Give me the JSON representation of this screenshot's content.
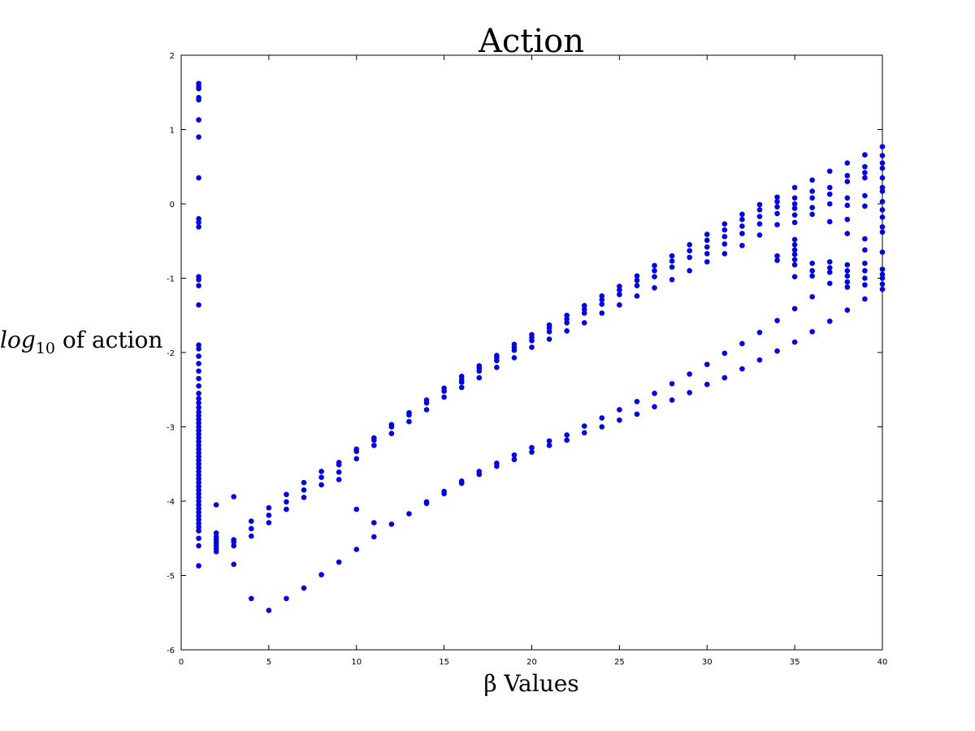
{
  "chart_data": {
    "type": "scatter",
    "title": "Action",
    "xlabel": "β Values",
    "ylabel_parts": {
      "prefix": "log",
      "subscript": "10",
      "suffix": " of action"
    },
    "xlim": [
      0,
      40
    ],
    "ylim": [
      -6,
      2
    ],
    "xticks": [
      0,
      5,
      10,
      15,
      20,
      25,
      30,
      35,
      40
    ],
    "yticks": [
      -6,
      -5,
      -4,
      -3,
      -2,
      -1,
      0,
      1,
      2
    ],
    "grid": false,
    "point_color": "#0000ee",
    "points": [
      [
        1,
        1.62
      ],
      [
        1,
        1.58
      ],
      [
        1,
        1.55
      ],
      [
        1,
        1.43
      ],
      [
        1,
        1.4
      ],
      [
        1,
        1.13
      ],
      [
        1,
        0.9
      ],
      [
        1,
        0.35
      ],
      [
        1,
        -0.2
      ],
      [
        1,
        -0.25
      ],
      [
        1,
        -0.31
      ],
      [
        1,
        -0.98
      ],
      [
        1,
        -1.02
      ],
      [
        1,
        -1.1
      ],
      [
        1,
        -1.36
      ],
      [
        1,
        -1.9
      ],
      [
        1,
        -1.95
      ],
      [
        1,
        -2.05
      ],
      [
        1,
        -2.15
      ],
      [
        1,
        -2.25
      ],
      [
        1,
        -2.35
      ],
      [
        1,
        -2.45
      ],
      [
        1,
        -2.55
      ],
      [
        1,
        -2.62
      ],
      [
        1,
        -2.68
      ],
      [
        1,
        -2.74
      ],
      [
        1,
        -2.8
      ],
      [
        1,
        -2.85
      ],
      [
        1,
        -2.9
      ],
      [
        1,
        -2.95
      ],
      [
        1,
        -3.0
      ],
      [
        1,
        -3.05
      ],
      [
        1,
        -3.1
      ],
      [
        1,
        -3.15
      ],
      [
        1,
        -3.2
      ],
      [
        1,
        -3.25
      ],
      [
        1,
        -3.3
      ],
      [
        1,
        -3.35
      ],
      [
        1,
        -3.4
      ],
      [
        1,
        -3.45
      ],
      [
        1,
        -3.5
      ],
      [
        1,
        -3.55
      ],
      [
        1,
        -3.6
      ],
      [
        1,
        -3.65
      ],
      [
        1,
        -3.7
      ],
      [
        1,
        -3.75
      ],
      [
        1,
        -3.8
      ],
      [
        1,
        -3.85
      ],
      [
        1,
        -3.9
      ],
      [
        1,
        -3.95
      ],
      [
        1,
        -4.0
      ],
      [
        1,
        -4.05
      ],
      [
        1,
        -4.1
      ],
      [
        1,
        -4.15
      ],
      [
        1,
        -4.2
      ],
      [
        1,
        -4.25
      ],
      [
        1,
        -4.3
      ],
      [
        1,
        -4.35
      ],
      [
        1,
        -4.4
      ],
      [
        1,
        -4.5
      ],
      [
        1,
        -4.6
      ],
      [
        1,
        -4.87
      ],
      [
        2,
        -4.05
      ],
      [
        2,
        -4.43
      ],
      [
        2,
        -4.48
      ],
      [
        2,
        -4.52
      ],
      [
        2,
        -4.56
      ],
      [
        2,
        -4.6
      ],
      [
        2,
        -4.64
      ],
      [
        2,
        -4.68
      ],
      [
        3,
        -3.94
      ],
      [
        3,
        -4.52
      ],
      [
        3,
        -4.55
      ],
      [
        3,
        -4.6
      ],
      [
        3,
        -4.85
      ],
      [
        4,
        -4.27
      ],
      [
        4,
        -4.37
      ],
      [
        4,
        -4.47
      ],
      [
        4,
        -5.31
      ],
      [
        5,
        -4.09
      ],
      [
        5,
        -4.19
      ],
      [
        5,
        -4.29
      ],
      [
        5,
        -5.47
      ],
      [
        6,
        -3.91
      ],
      [
        6,
        -4.01
      ],
      [
        6,
        -4.11
      ],
      [
        6,
        -5.31
      ],
      [
        7,
        -3.75
      ],
      [
        7,
        -3.85
      ],
      [
        7,
        -3.95
      ],
      [
        7,
        -5.17
      ],
      [
        8,
        -3.6
      ],
      [
        8,
        -3.68
      ],
      [
        8,
        -3.78
      ],
      [
        8,
        -4.99
      ],
      [
        9,
        -3.48
      ],
      [
        9,
        -3.51
      ],
      [
        9,
        -3.61
      ],
      [
        9,
        -3.71
      ],
      [
        9,
        -4.82
      ],
      [
        10,
        -3.3
      ],
      [
        10,
        -3.33
      ],
      [
        10,
        -3.43
      ],
      [
        10,
        -4.11
      ],
      [
        10,
        -4.65
      ],
      [
        11,
        -3.15
      ],
      [
        11,
        -3.18
      ],
      [
        11,
        -3.25
      ],
      [
        11,
        -4.29
      ],
      [
        11,
        -4.48
      ],
      [
        12,
        -2.97
      ],
      [
        12,
        -3.0
      ],
      [
        12,
        -3.09
      ],
      [
        12,
        -4.31
      ],
      [
        13,
        -2.81
      ],
      [
        13,
        -2.84
      ],
      [
        13,
        -2.93
      ],
      [
        13,
        -4.17
      ],
      [
        14,
        -2.64
      ],
      [
        14,
        -2.68
      ],
      [
        14,
        -2.77
      ],
      [
        14,
        -4.01
      ],
      [
        14,
        -4.03
      ],
      [
        15,
        -2.48
      ],
      [
        15,
        -2.52
      ],
      [
        15,
        -2.6
      ],
      [
        15,
        -3.87
      ],
      [
        15,
        -3.9
      ],
      [
        16,
        -2.32
      ],
      [
        16,
        -2.36
      ],
      [
        16,
        -2.4
      ],
      [
        16,
        -2.47
      ],
      [
        16,
        -3.73
      ],
      [
        16,
        -3.76
      ],
      [
        17,
        -2.18
      ],
      [
        17,
        -2.21
      ],
      [
        17,
        -2.25
      ],
      [
        17,
        -2.34
      ],
      [
        17,
        -3.6
      ],
      [
        17,
        -3.64
      ],
      [
        18,
        -2.04
      ],
      [
        18,
        -2.07
      ],
      [
        18,
        -2.11
      ],
      [
        18,
        -2.2
      ],
      [
        18,
        -3.49
      ],
      [
        18,
        -3.53
      ],
      [
        19,
        -1.89
      ],
      [
        19,
        -1.93
      ],
      [
        19,
        -1.97
      ],
      [
        19,
        -2.07
      ],
      [
        19,
        -3.38
      ],
      [
        19,
        -3.44
      ],
      [
        20,
        -1.76
      ],
      [
        20,
        -1.8
      ],
      [
        20,
        -1.84
      ],
      [
        20,
        -1.93
      ],
      [
        20,
        -3.28
      ],
      [
        20,
        -3.34
      ],
      [
        21,
        -1.63
      ],
      [
        21,
        -1.67
      ],
      [
        21,
        -1.72
      ],
      [
        21,
        -1.82
      ],
      [
        21,
        -3.19
      ],
      [
        21,
        -3.25
      ],
      [
        22,
        -1.5
      ],
      [
        22,
        -1.55
      ],
      [
        22,
        -1.6
      ],
      [
        22,
        -1.71
      ],
      [
        22,
        -3.11
      ],
      [
        22,
        -3.18
      ],
      [
        23,
        -1.37
      ],
      [
        23,
        -1.42
      ],
      [
        23,
        -1.47
      ],
      [
        23,
        -1.6
      ],
      [
        23,
        -2.99
      ],
      [
        23,
        -3.08
      ],
      [
        24,
        -1.24
      ],
      [
        24,
        -1.29
      ],
      [
        24,
        -1.35
      ],
      [
        24,
        -1.47
      ],
      [
        24,
        -2.88
      ],
      [
        24,
        -3.0
      ],
      [
        25,
        -1.11
      ],
      [
        25,
        -1.16
      ],
      [
        25,
        -1.22
      ],
      [
        25,
        -1.36
      ],
      [
        25,
        -2.77
      ],
      [
        25,
        -2.91
      ],
      [
        26,
        -0.97
      ],
      [
        26,
        -1.03
      ],
      [
        26,
        -1.1
      ],
      [
        26,
        -1.24
      ],
      [
        26,
        -2.66
      ],
      [
        26,
        -2.83
      ],
      [
        27,
        -0.83
      ],
      [
        27,
        -0.9
      ],
      [
        27,
        -0.98
      ],
      [
        27,
        -1.13
      ],
      [
        27,
        -2.55
      ],
      [
        27,
        -2.73
      ],
      [
        28,
        -0.7
      ],
      [
        28,
        -0.77
      ],
      [
        28,
        -0.85
      ],
      [
        28,
        -1.02
      ],
      [
        28,
        -2.42
      ],
      [
        28,
        -2.64
      ],
      [
        29,
        -0.55
      ],
      [
        29,
        -0.63
      ],
      [
        29,
        -0.72
      ],
      [
        29,
        -0.9
      ],
      [
        29,
        -2.29
      ],
      [
        29,
        -2.54
      ],
      [
        30,
        -0.41
      ],
      [
        30,
        -0.49
      ],
      [
        30,
        -0.58
      ],
      [
        30,
        -0.67
      ],
      [
        30,
        -0.78
      ],
      [
        30,
        -2.16
      ],
      [
        30,
        -2.43
      ],
      [
        31,
        -0.27
      ],
      [
        31,
        -0.35
      ],
      [
        31,
        -0.44
      ],
      [
        31,
        -0.54
      ],
      [
        31,
        -0.67
      ],
      [
        31,
        -2.01
      ],
      [
        31,
        -2.34
      ],
      [
        32,
        -0.14
      ],
      [
        32,
        -0.21
      ],
      [
        32,
        -0.3
      ],
      [
        32,
        -0.4
      ],
      [
        32,
        -0.56
      ],
      [
        32,
        -1.88
      ],
      [
        32,
        -2.22
      ],
      [
        33,
        -0.01
      ],
      [
        33,
        -0.08
      ],
      [
        33,
        -0.17
      ],
      [
        33,
        -0.27
      ],
      [
        33,
        -0.42
      ],
      [
        33,
        -1.73
      ],
      [
        33,
        -2.1
      ],
      [
        34,
        0.09
      ],
      [
        34,
        0.03
      ],
      [
        34,
        -0.04
      ],
      [
        34,
        -0.13
      ],
      [
        34,
        -0.28
      ],
      [
        34,
        -0.7
      ],
      [
        34,
        -0.76
      ],
      [
        34,
        -1.57
      ],
      [
        34,
        -1.98
      ],
      [
        35,
        0.22
      ],
      [
        35,
        0.08
      ],
      [
        35,
        0.0
      ],
      [
        35,
        -0.06
      ],
      [
        35,
        -0.15
      ],
      [
        35,
        -0.25
      ],
      [
        35,
        -0.48
      ],
      [
        35,
        -0.55
      ],
      [
        35,
        -0.62
      ],
      [
        35,
        -0.68
      ],
      [
        35,
        -0.75
      ],
      [
        35,
        -0.82
      ],
      [
        35,
        -0.98
      ],
      [
        35,
        -1.41
      ],
      [
        35,
        -1.86
      ],
      [
        36,
        0.32
      ],
      [
        36,
        0.17
      ],
      [
        36,
        0.08
      ],
      [
        36,
        -0.05
      ],
      [
        36,
        -0.14
      ],
      [
        36,
        -0.8
      ],
      [
        36,
        -0.9
      ],
      [
        36,
        -0.97
      ],
      [
        36,
        -1.25
      ],
      [
        36,
        -1.72
      ],
      [
        37,
        0.44
      ],
      [
        37,
        0.22
      ],
      [
        37,
        0.13
      ],
      [
        37,
        0.0
      ],
      [
        37,
        -0.24
      ],
      [
        37,
        -0.78
      ],
      [
        37,
        -0.86
      ],
      [
        37,
        -0.92
      ],
      [
        37,
        -1.07
      ],
      [
        37,
        -1.58
      ],
      [
        38,
        0.55
      ],
      [
        38,
        0.38
      ],
      [
        38,
        0.3
      ],
      [
        38,
        0.08
      ],
      [
        38,
        -0.02
      ],
      [
        38,
        -0.21
      ],
      [
        38,
        -0.4
      ],
      [
        38,
        -0.82
      ],
      [
        38,
        -0.9
      ],
      [
        38,
        -0.97
      ],
      [
        38,
        -1.05
      ],
      [
        38,
        -1.12
      ],
      [
        38,
        -1.43
      ],
      [
        39,
        0.66
      ],
      [
        39,
        0.5
      ],
      [
        39,
        0.42
      ],
      [
        39,
        0.35
      ],
      [
        39,
        0.11
      ],
      [
        39,
        -0.03
      ],
      [
        39,
        -0.47
      ],
      [
        39,
        -0.62
      ],
      [
        39,
        -0.8
      ],
      [
        39,
        -0.9
      ],
      [
        39,
        -1.0
      ],
      [
        39,
        -1.09
      ],
      [
        39,
        -1.28
      ],
      [
        40,
        0.77
      ],
      [
        40,
        0.65
      ],
      [
        40,
        0.55
      ],
      [
        40,
        0.48
      ],
      [
        40,
        0.35
      ],
      [
        40,
        0.22
      ],
      [
        40,
        0.17
      ],
      [
        40,
        0.03
      ],
      [
        40,
        -0.08
      ],
      [
        40,
        -0.18
      ],
      [
        40,
        -0.31
      ],
      [
        40,
        -0.38
      ],
      [
        40,
        -0.65
      ],
      [
        40,
        -0.88
      ],
      [
        40,
        -0.95
      ],
      [
        40,
        -1.0
      ],
      [
        40,
        -1.08
      ],
      [
        40,
        -1.15
      ]
    ]
  }
}
